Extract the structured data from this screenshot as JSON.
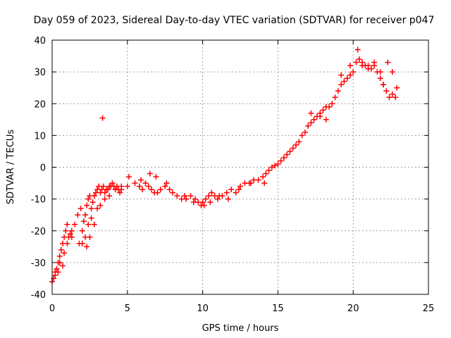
{
  "chart_data": {
    "type": "scatter",
    "title": "Day 059 of 2023, Sidereal Day-to-day VTEC variation (SDTVAR) for receiver p047",
    "xlabel": "GPS time / hours",
    "ylabel": "SDTVAR / TECUs",
    "xlim": [
      0,
      25
    ],
    "ylim": [
      -40,
      40
    ],
    "xticks": [
      0,
      5,
      10,
      15,
      20,
      25
    ],
    "yticks": [
      -40,
      -30,
      -20,
      -10,
      0,
      10,
      20,
      30,
      40
    ],
    "grid": true,
    "marker": "+",
    "color": "#ff0000",
    "series": [
      {
        "name": "SDTVAR",
        "x": [
          0.0,
          0.1,
          0.2,
          0.3,
          0.4,
          0.5,
          0.6,
          0.7,
          0.8,
          0.9,
          1.0,
          1.1,
          1.2,
          1.3,
          1.5,
          1.7,
          1.9,
          2.0,
          2.1,
          2.2,
          2.3,
          2.4,
          2.5,
          2.6,
          2.7,
          2.8,
          2.9,
          3.0,
          3.1,
          3.2,
          3.3,
          3.4,
          3.5,
          3.6,
          3.7,
          3.8,
          3.9,
          4.0,
          4.1,
          4.2,
          4.3,
          4.4,
          4.5,
          4.6,
          5.0,
          5.5,
          5.8,
          6.0,
          6.2,
          6.4,
          6.6,
          6.8,
          7.0,
          7.2,
          7.5,
          7.8,
          8.0,
          8.3,
          8.6,
          8.9,
          9.2,
          9.5,
          9.7,
          9.9,
          10.0,
          10.2,
          10.4,
          10.6,
          10.8,
          11.0,
          11.3,
          11.6,
          11.9,
          12.2,
          12.5,
          12.8,
          13.1,
          13.4,
          13.7,
          14.0,
          14.2,
          14.4,
          14.6,
          14.8,
          15.0,
          15.2,
          15.4,
          15.6,
          15.8,
          16.0,
          16.2,
          16.4,
          16.6,
          16.8,
          17.0,
          17.2,
          17.4,
          17.6,
          17.8,
          18.0,
          18.2,
          18.4,
          18.6,
          18.8,
          19.0,
          19.2,
          19.4,
          19.6,
          19.8,
          20.0,
          20.2,
          20.4,
          20.6,
          20.8,
          21.0,
          21.2,
          21.4,
          21.6,
          21.8,
          22.0,
          22.2,
          22.4,
          22.6,
          22.8,
          0.2,
          0.5,
          0.8,
          1.0,
          1.3,
          2.0,
          2.2,
          2.4,
          2.6,
          2.8,
          3.0,
          3.2,
          3.5,
          3.8,
          4.2,
          4.6,
          3.35,
          5.1,
          5.9,
          6.5,
          6.9,
          7.6,
          8.8,
          9.4,
          10.1,
          10.5,
          11.1,
          11.7,
          12.4,
          13.2,
          14.1,
          17.2,
          17.8,
          18.2,
          18.6,
          19.2,
          19.8,
          20.3,
          20.6,
          21.0,
          21.4,
          21.8,
          22.0,
          22.3,
          22.6,
          22.9,
          2.3,
          2.5,
          1.8,
          0.4,
          0.7
        ],
        "y": [
          -36,
          -35,
          -33,
          -32,
          -30,
          -28,
          -26,
          -24,
          -22,
          -20,
          -18,
          -22,
          -21,
          -22,
          -18,
          -15,
          -13,
          -20,
          -17,
          -15,
          -12,
          -10,
          -9,
          -13,
          -11,
          -9,
          -8,
          -7,
          -6,
          -8,
          -7,
          -6,
          -8,
          -7,
          -7,
          -6,
          -6,
          -5,
          -6,
          -7,
          -6,
          -7,
          -8,
          -7,
          -6,
          -5,
          -6,
          -7,
          -5,
          -6,
          -7,
          -8,
          -8,
          -7,
          -6,
          -7,
          -8,
          -9,
          -10,
          -10,
          -9,
          -10,
          -11,
          -12,
          -11,
          -10,
          -9,
          -8,
          -9,
          -10,
          -9,
          -8,
          -7,
          -8,
          -6,
          -5,
          -5,
          -4,
          -4,
          -3,
          -2,
          -1,
          0,
          0.5,
          1,
          2,
          3,
          4,
          5,
          6,
          7,
          8,
          10,
          11,
          13,
          14,
          15,
          16,
          17,
          18,
          19,
          19,
          20,
          22,
          24,
          26,
          27,
          28,
          29,
          30,
          33,
          34,
          33,
          32,
          32,
          31,
          32,
          30,
          28,
          26,
          24,
          22,
          23,
          22,
          -34,
          -30,
          -27,
          -24,
          -20,
          -24,
          -22,
          -18,
          -16,
          -18,
          -13,
          -12,
          -10,
          -9,
          -7,
          -6,
          15.5,
          -3,
          -4,
          -2,
          -3,
          -5,
          -9,
          -11,
          -12,
          -11,
          -9,
          -10,
          -7,
          -5,
          -5,
          17,
          16,
          15,
          20,
          29,
          32,
          37,
          32,
          31,
          33,
          30,
          26,
          33,
          30,
          25,
          -25,
          -22,
          -24,
          -33,
          -31
        ]
      }
    ]
  }
}
